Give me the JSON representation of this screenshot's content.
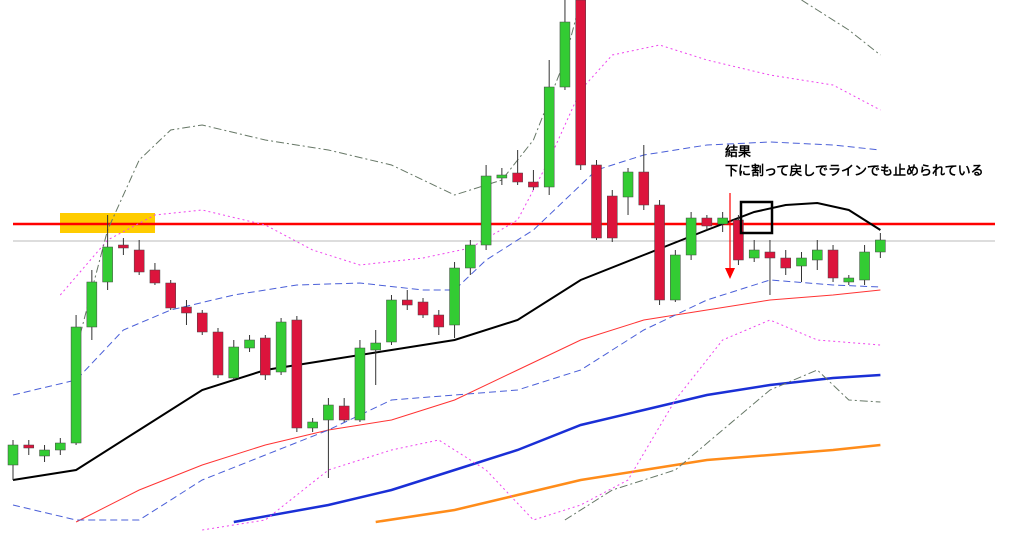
{
  "chart_data": {
    "type": "candlestick",
    "ylim": [
      0,
      535
    ],
    "up_color": "#33cc33",
    "down_color": "#dc143c",
    "open": [
      70,
      90,
      79,
      85,
      92,
      208,
      253,
      290,
      285,
      265,
      252,
      228,
      222,
      203,
      157,
      187,
      197,
      163,
      215,
      107,
      115,
      129,
      115,
      185,
      193,
      235,
      233,
      220,
      210,
      267,
      290,
      357,
      362,
      353,
      348,
      448,
      535,
      370,
      339,
      338,
      363,
      330,
      235,
      280,
      317,
      311,
      315,
      277,
      283,
      277,
      269,
      275,
      285,
      253,
      255,
      283
    ],
    "high": [
      95,
      95,
      90,
      97,
      220,
      265,
      320,
      297,
      295,
      272,
      255,
      235,
      225,
      207,
      195,
      200,
      200,
      217,
      219,
      117,
      137,
      137,
      195,
      205,
      240,
      245,
      237,
      225,
      273,
      295,
      370,
      367,
      385,
      365,
      475,
      535,
      535,
      375,
      345,
      367,
      390,
      335,
      285,
      323,
      320,
      323,
      320,
      295,
      295,
      285,
      283,
      295,
      290,
      260,
      290,
      302
    ],
    "low": [
      55,
      80,
      73,
      80,
      90,
      195,
      245,
      280,
      260,
      250,
      225,
      210,
      200,
      157,
      155,
      183,
      155,
      160,
      103,
      103,
      57,
      113,
      113,
      150,
      190,
      225,
      217,
      200,
      197,
      260,
      285,
      350,
      350,
      345,
      340,
      445,
      365,
      295,
      293,
      320,
      325,
      230,
      233,
      275,
      305,
      303,
      270,
      273,
      240,
      260,
      253,
      265,
      253,
      250,
      250,
      277
    ],
    "close": [
      90,
      87,
      85,
      92,
      208,
      253,
      288,
      287,
      263,
      252,
      227,
      222,
      203,
      160,
      188,
      195,
      160,
      213,
      107,
      113,
      130,
      115,
      187,
      192,
      235,
      230,
      220,
      208,
      267,
      290,
      359,
      360,
      353,
      348,
      448,
      513,
      370,
      297,
      297,
      363,
      330,
      235,
      280,
      317,
      309,
      317,
      275,
      285,
      277,
      267,
      277,
      285,
      257,
      257,
      283,
      295
    ],
    "lines": [
      {
        "color": "#000000",
        "width": 2,
        "dash": "none",
        "x": [
          0,
          4,
          8,
          12,
          16,
          20,
          24,
          28,
          32,
          36,
          40,
          44,
          47,
          49,
          51,
          53,
          55
        ],
        "values": [
          55,
          65,
          105,
          145,
          165,
          175,
          185,
          195,
          215,
          255,
          280,
          305,
          323,
          330,
          332,
          325,
          305
        ]
      },
      {
        "color": "#ff3333",
        "width": 1,
        "dash": "none",
        "x": [
          4,
          8,
          12,
          16,
          20,
          24,
          28,
          32,
          36,
          40,
          44,
          48,
          52,
          55
        ],
        "values": [
          13,
          45,
          70,
          90,
          105,
          115,
          135,
          165,
          195,
          215,
          225,
          235,
          240,
          245
        ]
      },
      {
        "color": "#1a2fd6",
        "width": 2.5,
        "dash": "none",
        "x": [
          14,
          20,
          24,
          28,
          32,
          36,
          40,
          44,
          48,
          52,
          55
        ],
        "values": [
          13,
          30,
          45,
          65,
          85,
          110,
          125,
          140,
          150,
          157,
          160
        ]
      },
      {
        "color": "#ff8c1a",
        "width": 2.5,
        "dash": "none",
        "x": [
          23,
          28,
          32,
          36,
          40,
          44,
          48,
          52,
          55
        ],
        "values": [
          13,
          25,
          40,
          55,
          65,
          75,
          80,
          85,
          90
        ]
      },
      {
        "color": "#4a5fd8",
        "width": 1,
        "dash": "7,4",
        "x": [
          0,
          4,
          7,
          10,
          14,
          18,
          22,
          26,
          28,
          30,
          33,
          35,
          37,
          40,
          44,
          48,
          52,
          55
        ],
        "values": [
          140,
          155,
          205,
          225,
          240,
          250,
          252,
          245,
          245,
          275,
          305,
          335,
          365,
          380,
          390,
          393,
          390,
          385
        ]
      },
      {
        "color": "#4a5fd8",
        "width": 1,
        "dash": "7,4",
        "x": [
          0,
          4,
          8,
          12,
          16,
          20,
          24,
          28,
          32,
          36,
          40,
          44,
          48,
          52,
          55
        ],
        "values": [
          30,
          15,
          15,
          55,
          80,
          105,
          135,
          140,
          145,
          165,
          205,
          235,
          255,
          250,
          248
        ]
      },
      {
        "color": "#ee44ee",
        "width": 1,
        "dash": "2,3",
        "x": [
          3,
          6,
          9,
          12,
          16,
          19,
          22,
          26,
          29,
          32,
          34,
          36,
          38,
          41,
          44,
          48,
          52,
          55
        ],
        "values": [
          240,
          295,
          320,
          325,
          310,
          285,
          270,
          277,
          287,
          315,
          375,
          445,
          480,
          490,
          475,
          460,
          450,
          425
        ]
      },
      {
        "color": "#ee44ee",
        "width": 1,
        "dash": "2,3",
        "x": [
          12,
          16,
          20,
          24,
          27,
          30,
          33,
          36,
          39,
          42,
          45,
          48,
          51,
          55
        ],
        "values": [
          5,
          15,
          65,
          85,
          95,
          65,
          15,
          30,
          55,
          135,
          195,
          215,
          195,
          190
        ]
      },
      {
        "color": "#667766",
        "width": 1,
        "dash": "8,3,2,3",
        "x": [
          4,
          6,
          8,
          10,
          12,
          16,
          20,
          24,
          28,
          31,
          33,
          35,
          36
        ],
        "values": [
          185,
          305,
          375,
          405,
          410,
          395,
          385,
          370,
          340,
          355,
          395,
          475,
          535
        ]
      },
      {
        "color": "#667766",
        "width": 1,
        "dash": "8,3,2,3",
        "x": [
          50,
          51,
          53,
          55
        ],
        "values": [
          535,
          525,
          505,
          480
        ]
      },
      {
        "color": "#667766",
        "width": 1,
        "dash": "8,3,2,3",
        "x": [
          35,
          38,
          42,
          45,
          48,
          51,
          53,
          55
        ],
        "values": [
          15,
          45,
          65,
          105,
          145,
          165,
          135,
          133
        ]
      }
    ],
    "hlines": [
      {
        "value": 311,
        "color": "#ff0000",
        "width": 2.5
      },
      {
        "value": 294,
        "color": "#bbbbbb",
        "width": 1
      }
    ],
    "annotation_title": "結果",
    "annotation_text": "下に割って戻しでラインでも止められている"
  }
}
